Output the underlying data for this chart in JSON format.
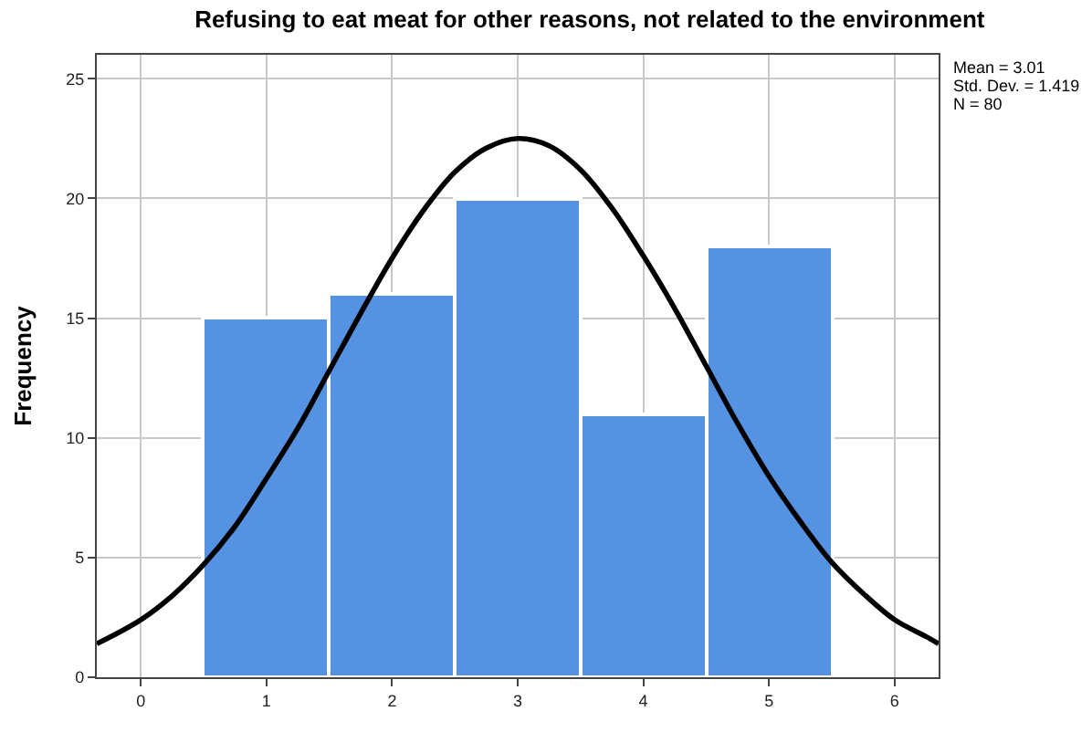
{
  "chart_data": {
    "type": "histogram",
    "title": "Refusing to eat meat for other reasons, not related to the environment",
    "ylabel": "Frequency",
    "bins": [
      0.5,
      1.5,
      2.5,
      3.5,
      4.5,
      5.5
    ],
    "values": [
      15,
      16,
      20,
      11,
      18
    ],
    "color": "#5593e2",
    "series": [
      {
        "type": "line",
        "color": "#000000",
        "x": [
          -0.35,
          0,
          0.25,
          0.5,
          0.75,
          1,
          1.25,
          1.5,
          1.75,
          2,
          2.25,
          2.5,
          2.75,
          3,
          3.25,
          3.5,
          3.75,
          4,
          4.25,
          4.5,
          4.75,
          5,
          5.25,
          5.5,
          5.75,
          6,
          6.25,
          6.35
        ],
        "values": [
          1.4,
          2.4,
          3.4,
          4.7,
          6.3,
          8.3,
          10.4,
          12.8,
          15.2,
          17.5,
          19.5,
          21.1,
          22.1,
          22.5,
          22.2,
          21.2,
          19.6,
          17.6,
          15.4,
          13.0,
          10.6,
          8.4,
          6.5,
          4.8,
          3.5,
          2.4,
          1.7,
          1.4
        ]
      }
    ],
    "xlim": [
      -0.35,
      6.35
    ],
    "xticks": [
      0,
      1,
      2,
      3,
      4,
      5,
      6
    ],
    "ylim": [
      0,
      26
    ],
    "yticks": [
      0,
      5,
      10,
      15,
      20,
      25
    ],
    "grid": true,
    "annotations": [
      "Mean = 3.01",
      "Std. Dev. = 1.419",
      "N = 80"
    ]
  }
}
